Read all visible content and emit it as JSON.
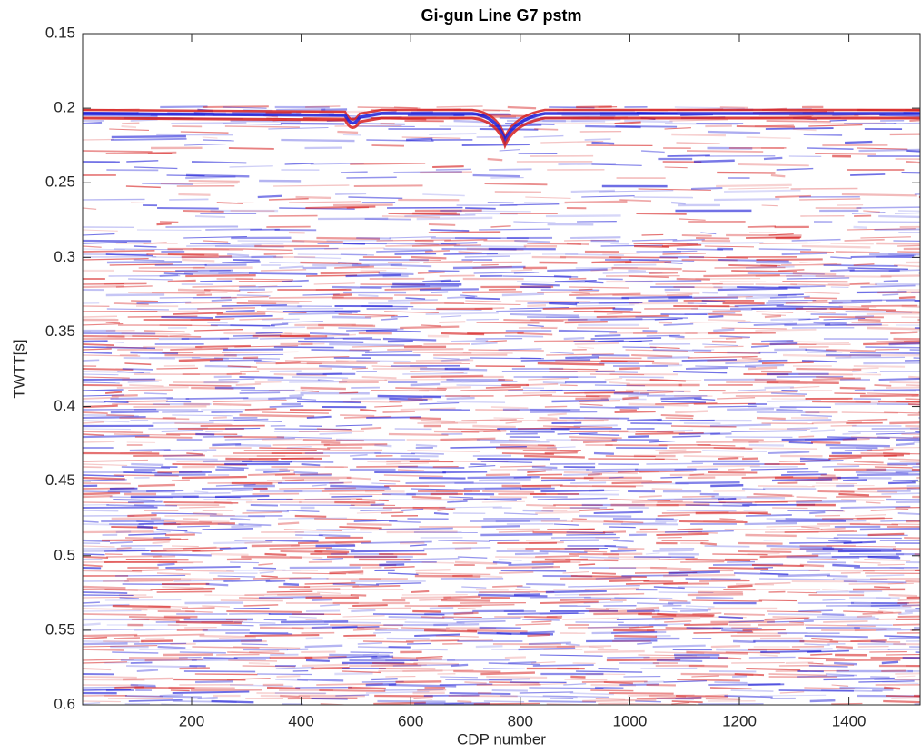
{
  "chart_data": {
    "type": "seismic-image",
    "title": "Gi-gun Line G7 pstm",
    "x_label": "CDP number",
    "y_label": "TWTT[s]",
    "xlim": [
      1,
      1530
    ],
    "xticks": [
      200,
      400,
      600,
      800,
      1000,
      1200,
      1400
    ],
    "ylim": [
      0.15,
      0.6
    ],
    "yticks": [
      0.15,
      0.2,
      0.25,
      0.3,
      0.35,
      0.4,
      0.45,
      0.5,
      0.55,
      0.6
    ],
    "y_reversed": true,
    "colors": [
      "#d62020",
      "#ffffff",
      "#1a1ad6"
    ]
  }
}
